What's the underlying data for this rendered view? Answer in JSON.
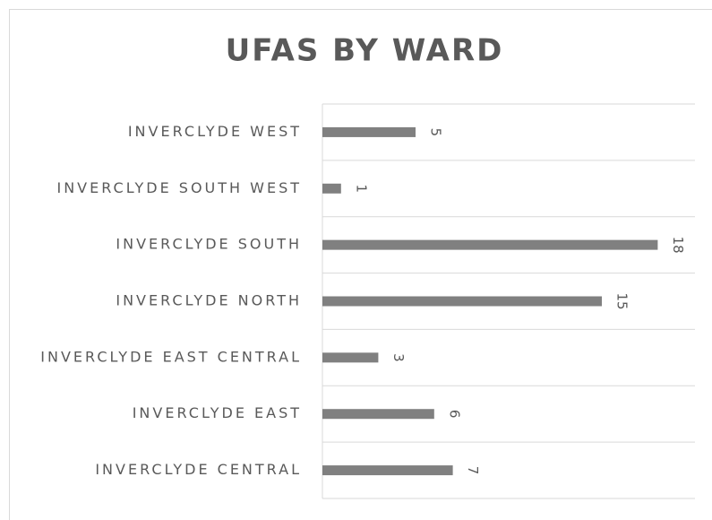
{
  "chart_data": {
    "type": "hbar",
    "title": "UFAS BY WARD",
    "categories": [
      "INVERCLYDE WEST",
      "INVERCLYDE SOUTH WEST",
      "INVERCLYDE SOUTH",
      "INVERCLYDE NORTH",
      "INVERCLYDE EAST CENTRAL",
      "INVERCLYDE EAST",
      "INVERCLYDE CENTRAL"
    ],
    "values": [
      5,
      1,
      18,
      15,
      3,
      6,
      7
    ],
    "color": "#808080",
    "xlim": [
      0,
      20
    ],
    "data_labels": true
  }
}
